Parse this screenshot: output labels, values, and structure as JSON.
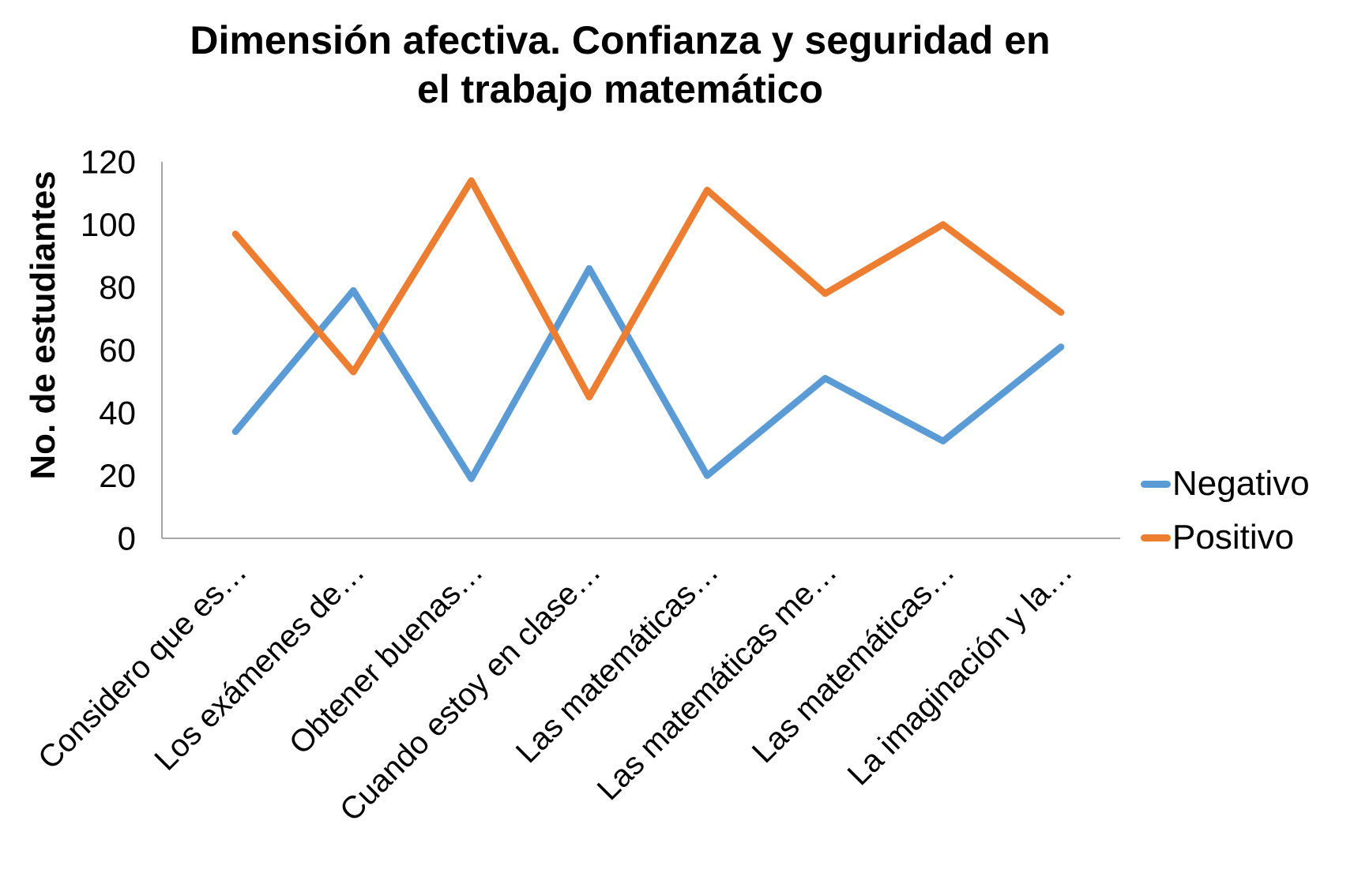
{
  "chart_data": {
    "type": "line",
    "title": "Dimensión afectiva. Confianza y seguridad en el trabajo matemático",
    "title_lines": [
      "Dimensión afectiva. Confianza y seguridad en",
      "el trabajo matemático"
    ],
    "ylabel": "No. de estudiantes",
    "ylim": [
      0,
      120
    ],
    "ytick_step": 20,
    "grid": false,
    "legend_position": "right",
    "categories": [
      "Considero que es…",
      "Los exámenes de…",
      "Obtener buenas…",
      "Cuando estoy en clase…",
      "Las matemáticas…",
      "Las matemáticas me…",
      "Las matemáticas…",
      "La imaginación y la…"
    ],
    "series": [
      {
        "name": "Negativo",
        "color": "#5B9BD5",
        "values": [
          34,
          79,
          19,
          86,
          20,
          51,
          31,
          61
        ]
      },
      {
        "name": "Positivo",
        "color": "#ED7D31",
        "values": [
          97,
          53,
          114,
          45,
          111,
          78,
          100,
          72
        ]
      }
    ],
    "axis_color": "#A6A6A6",
    "text_color": "#000000",
    "background": "#FFFFFF"
  }
}
